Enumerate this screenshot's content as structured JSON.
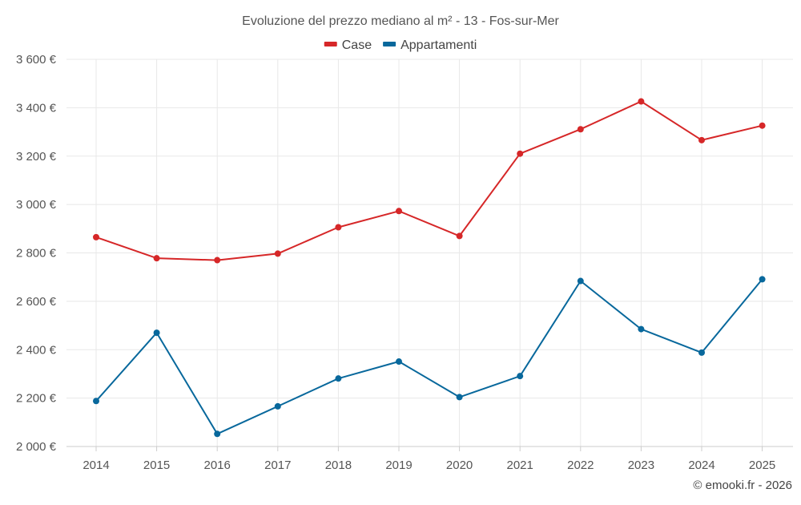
{
  "chart_data": {
    "type": "line",
    "title": "Evoluzione del prezzo mediano al m² - 13 - Fos-sur-Mer",
    "x": [
      "2014",
      "2015",
      "2016",
      "2017",
      "2018",
      "2019",
      "2020",
      "2021",
      "2022",
      "2023",
      "2024",
      "2025"
    ],
    "ylim": [
      2000,
      3600
    ],
    "yticks": [
      2000,
      2200,
      2400,
      2600,
      2800,
      3000,
      3200,
      3400,
      3600
    ],
    "ytick_labels": [
      "2 000 €",
      "2 200 €",
      "2 400 €",
      "2 600 €",
      "2 800 €",
      "3 000 €",
      "3 200 €",
      "3 400 €",
      "3 600 €"
    ],
    "grid": true,
    "legend_position": "top-center",
    "series": [
      {
        "name": "Case",
        "color": "#d62728",
        "values": [
          2865,
          2778,
          2770,
          2797,
          2906,
          2973,
          2870,
          3210,
          3311,
          3426,
          3266,
          3326
        ]
      },
      {
        "name": "Appartamenti",
        "color": "#08689c",
        "values": [
          2188,
          2470,
          2052,
          2166,
          2281,
          2351,
          2204,
          2291,
          2684,
          2485,
          2388,
          2691
        ]
      }
    ]
  },
  "credit": "© emooki.fr - 2026"
}
